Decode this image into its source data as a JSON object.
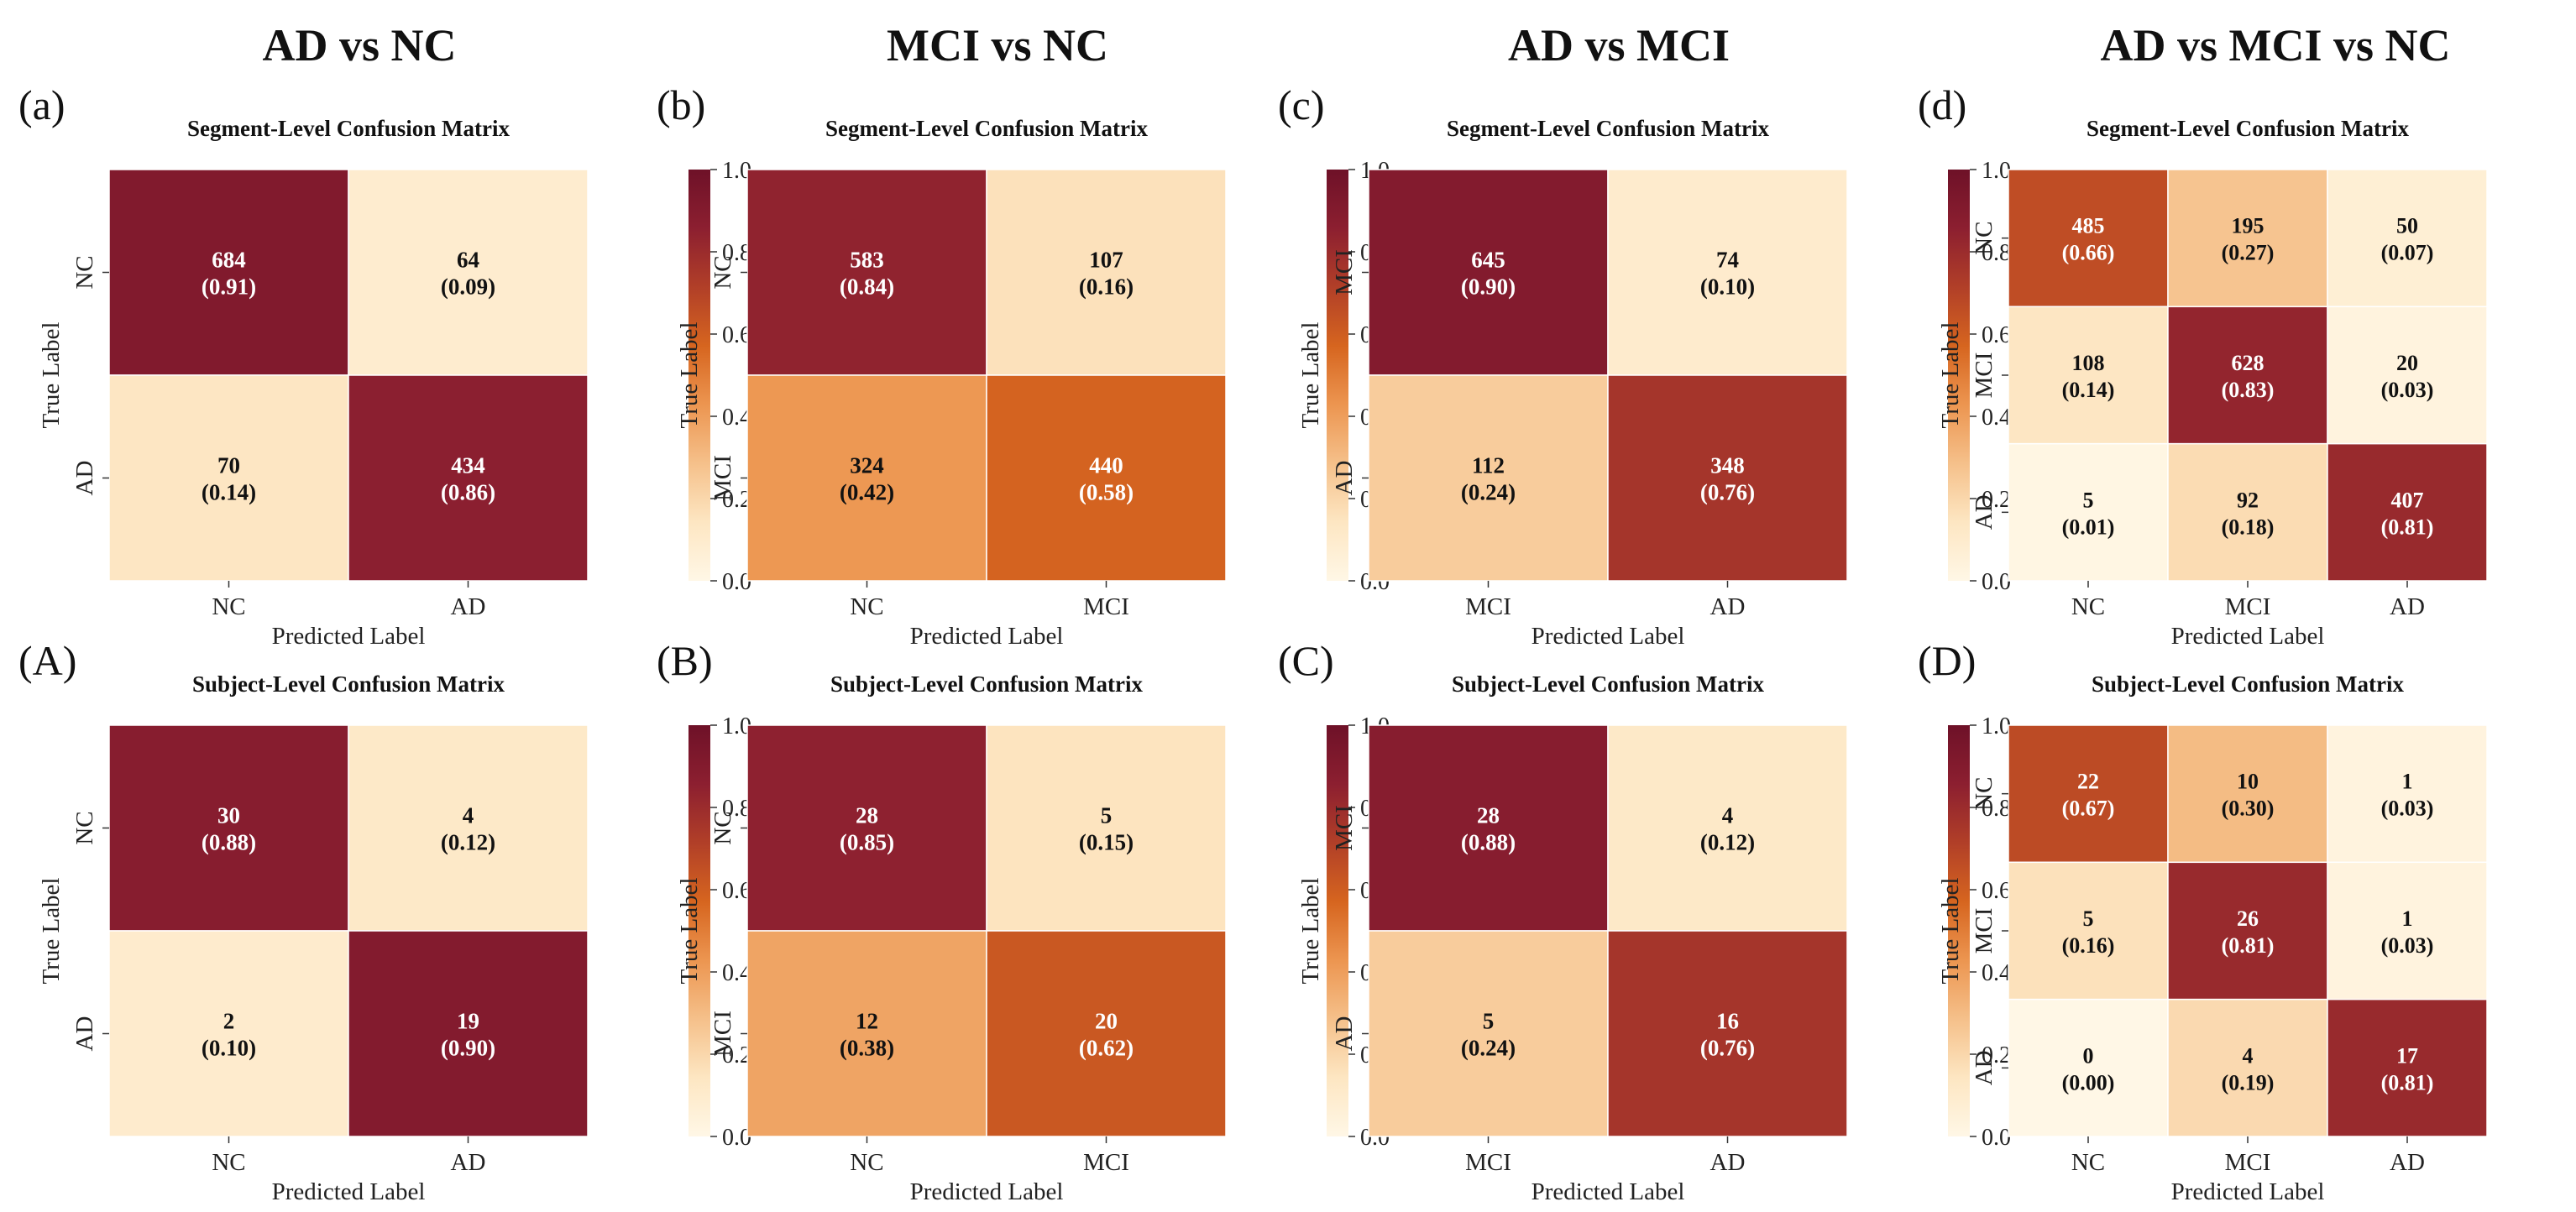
{
  "column_titles": [
    "AD vs NC",
    "MCI vs NC",
    "AD vs MCI",
    "AD vs MCI vs NC"
  ],
  "colorbar": {
    "ticks": [
      "0.0",
      "0.2",
      "0.4",
      "0.6",
      "0.8",
      "1.0"
    ],
    "colors": [
      "#fff7e6",
      "#fde6c2",
      "#f5c08a",
      "#ec9550",
      "#d6651f",
      "#b13f28",
      "#8c1f30",
      "#6e1128"
    ]
  },
  "chart_data": [
    {
      "type": "heatmap",
      "panel_label": "(a)",
      "title": "Segment-Level Confusion Matrix",
      "xlabel": "Predicted Label",
      "ylabel": "True Label",
      "x_categories": [
        "NC",
        "AD"
      ],
      "y_categories": [
        "NC",
        "AD"
      ],
      "counts": [
        [
          "684",
          "64"
        ],
        [
          "70",
          "434"
        ]
      ],
      "proportions": [
        [
          "(0.91)",
          "(0.09)"
        ],
        [
          "(0.14)",
          "(0.86)"
        ]
      ],
      "values": [
        [
          0.91,
          0.09
        ],
        [
          0.14,
          0.86
        ]
      ],
      "zlim": [
        0,
        1
      ]
    },
    {
      "type": "heatmap",
      "panel_label": "(b)",
      "title": "Segment-Level Confusion Matrix",
      "xlabel": "Predicted Label",
      "ylabel": "True Label",
      "x_categories": [
        "NC",
        "MCI"
      ],
      "y_categories": [
        "NC",
        "MCI"
      ],
      "counts": [
        [
          "583",
          "107"
        ],
        [
          "324",
          "440"
        ]
      ],
      "proportions": [
        [
          "(0.84)",
          "(0.16)"
        ],
        [
          "(0.42)",
          "(0.58)"
        ]
      ],
      "values": [
        [
          0.84,
          0.16
        ],
        [
          0.42,
          0.58
        ]
      ],
      "zlim": [
        0,
        1
      ]
    },
    {
      "type": "heatmap",
      "panel_label": "(c)",
      "title": "Segment-Level Confusion Matrix",
      "xlabel": "Predicted Label",
      "ylabel": "True Label",
      "x_categories": [
        "MCI",
        "AD"
      ],
      "y_categories": [
        "MCI",
        "AD"
      ],
      "counts": [
        [
          "645",
          "74"
        ],
        [
          "112",
          "348"
        ]
      ],
      "proportions": [
        [
          "(0.90)",
          "(0.10)"
        ],
        [
          "(0.24)",
          "(0.76)"
        ]
      ],
      "values": [
        [
          0.9,
          0.1
        ],
        [
          0.24,
          0.76
        ]
      ],
      "zlim": [
        0,
        1
      ]
    },
    {
      "type": "heatmap",
      "panel_label": "(d)",
      "title": "Segment-Level Confusion Matrix",
      "xlabel": "Predicted Label",
      "ylabel": "True Label",
      "x_categories": [
        "NC",
        "MCI",
        "AD"
      ],
      "y_categories": [
        "NC",
        "MCI",
        "AD"
      ],
      "counts": [
        [
          "485",
          "195",
          "50"
        ],
        [
          "108",
          "628",
          "20"
        ],
        [
          "5",
          "92",
          "407"
        ]
      ],
      "proportions": [
        [
          "(0.66)",
          "(0.27)",
          "(0.07)"
        ],
        [
          "(0.14)",
          "(0.83)",
          "(0.03)"
        ],
        [
          "(0.01)",
          "(0.18)",
          "(0.81)"
        ]
      ],
      "values": [
        [
          0.66,
          0.27,
          0.07
        ],
        [
          0.14,
          0.83,
          0.03
        ],
        [
          0.01,
          0.18,
          0.81
        ]
      ],
      "zlim": [
        0,
        1
      ]
    },
    {
      "type": "heatmap",
      "panel_label": "(A)",
      "title": "Subject-Level Confusion Matrix",
      "xlabel": "Predicted Label",
      "ylabel": "True Label",
      "x_categories": [
        "NC",
        "AD"
      ],
      "y_categories": [
        "NC",
        "AD"
      ],
      "counts": [
        [
          "30",
          "4"
        ],
        [
          "2",
          "19"
        ]
      ],
      "proportions": [
        [
          "(0.88)",
          "(0.12)"
        ],
        [
          "(0.10)",
          "(0.90)"
        ]
      ],
      "values": [
        [
          0.88,
          0.12
        ],
        [
          0.1,
          0.9
        ]
      ],
      "zlim": [
        0,
        1
      ]
    },
    {
      "type": "heatmap",
      "panel_label": "(B)",
      "title": "Subject-Level Confusion Matrix",
      "xlabel": "Predicted Label",
      "ylabel": "True Label",
      "x_categories": [
        "NC",
        "MCI"
      ],
      "y_categories": [
        "NC",
        "MCI"
      ],
      "counts": [
        [
          "28",
          "5"
        ],
        [
          "12",
          "20"
        ]
      ],
      "proportions": [
        [
          "(0.85)",
          "(0.15)"
        ],
        [
          "(0.38)",
          "(0.62)"
        ]
      ],
      "values": [
        [
          0.85,
          0.15
        ],
        [
          0.38,
          0.62
        ]
      ],
      "zlim": [
        0,
        1
      ]
    },
    {
      "type": "heatmap",
      "panel_label": "(C)",
      "title": "Subject-Level Confusion Matrix",
      "xlabel": "Predicted Label",
      "ylabel": "True Label",
      "x_categories": [
        "MCI",
        "AD"
      ],
      "y_categories": [
        "MCI",
        "AD"
      ],
      "counts": [
        [
          "28",
          "4"
        ],
        [
          "5",
          "16"
        ]
      ],
      "proportions": [
        [
          "(0.88)",
          "(0.12)"
        ],
        [
          "(0.24)",
          "(0.76)"
        ]
      ],
      "values": [
        [
          0.88,
          0.12
        ],
        [
          0.24,
          0.76
        ]
      ],
      "zlim": [
        0,
        1
      ]
    },
    {
      "type": "heatmap",
      "panel_label": "(D)",
      "title": "Subject-Level Confusion Matrix",
      "xlabel": "Predicted Label",
      "ylabel": "True Label",
      "x_categories": [
        "NC",
        "MCI",
        "AD"
      ],
      "y_categories": [
        "NC",
        "MCI",
        "AD"
      ],
      "counts": [
        [
          "22",
          "10",
          "1"
        ],
        [
          "5",
          "26",
          "1"
        ],
        [
          "0",
          "4",
          "17"
        ]
      ],
      "proportions": [
        [
          "(0.67)",
          "(0.30)",
          "(0.03)"
        ],
        [
          "(0.16)",
          "(0.81)",
          "(0.03)"
        ],
        [
          "(0.00)",
          "(0.19)",
          "(0.81)"
        ]
      ],
      "values": [
        [
          0.67,
          0.3,
          0.03
        ],
        [
          0.16,
          0.81,
          0.03
        ],
        [
          0.0,
          0.19,
          0.81
        ]
      ],
      "zlim": [
        0,
        1
      ]
    }
  ]
}
